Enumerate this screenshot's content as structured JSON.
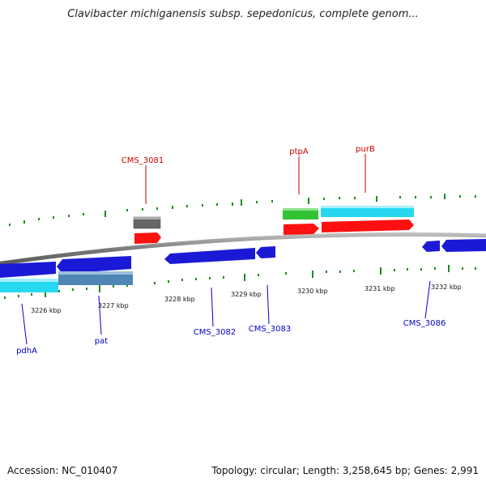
{
  "title": "Clavibacter michiganensis subsp. sepedonicus, complete genom...",
  "footer": {
    "accession": "Accession: NC_010407",
    "summary": "Topology: circular; Length: 3,258,645 bp; Genes: 2,991"
  },
  "colors": {
    "backbone": "#8a8a8a",
    "tick": "#1e8a1e",
    "label_red": "#cc0000",
    "label_blue": "#0000cc",
    "blue_feature": "#1a1ad6",
    "cyan_feature": "#27d8f0",
    "steel_feature": "#4f86b6",
    "red_feature": "#ff1010",
    "green_feature": "#33c233",
    "gray_feature": "#666666"
  },
  "axis_labels": [
    "3226 kbp",
    "3227 kbp",
    "3228 kbp",
    "3229 kbp",
    "3230 kbp",
    "3231 kbp",
    "3232 kbp"
  ],
  "gene_labels_top": [
    "CMS_3081",
    "ptpA",
    "purB"
  ],
  "gene_labels_bottom": [
    "pdhA",
    "pat",
    "CMS_3082",
    "CMS_3083",
    "CMS_3086"
  ]
}
